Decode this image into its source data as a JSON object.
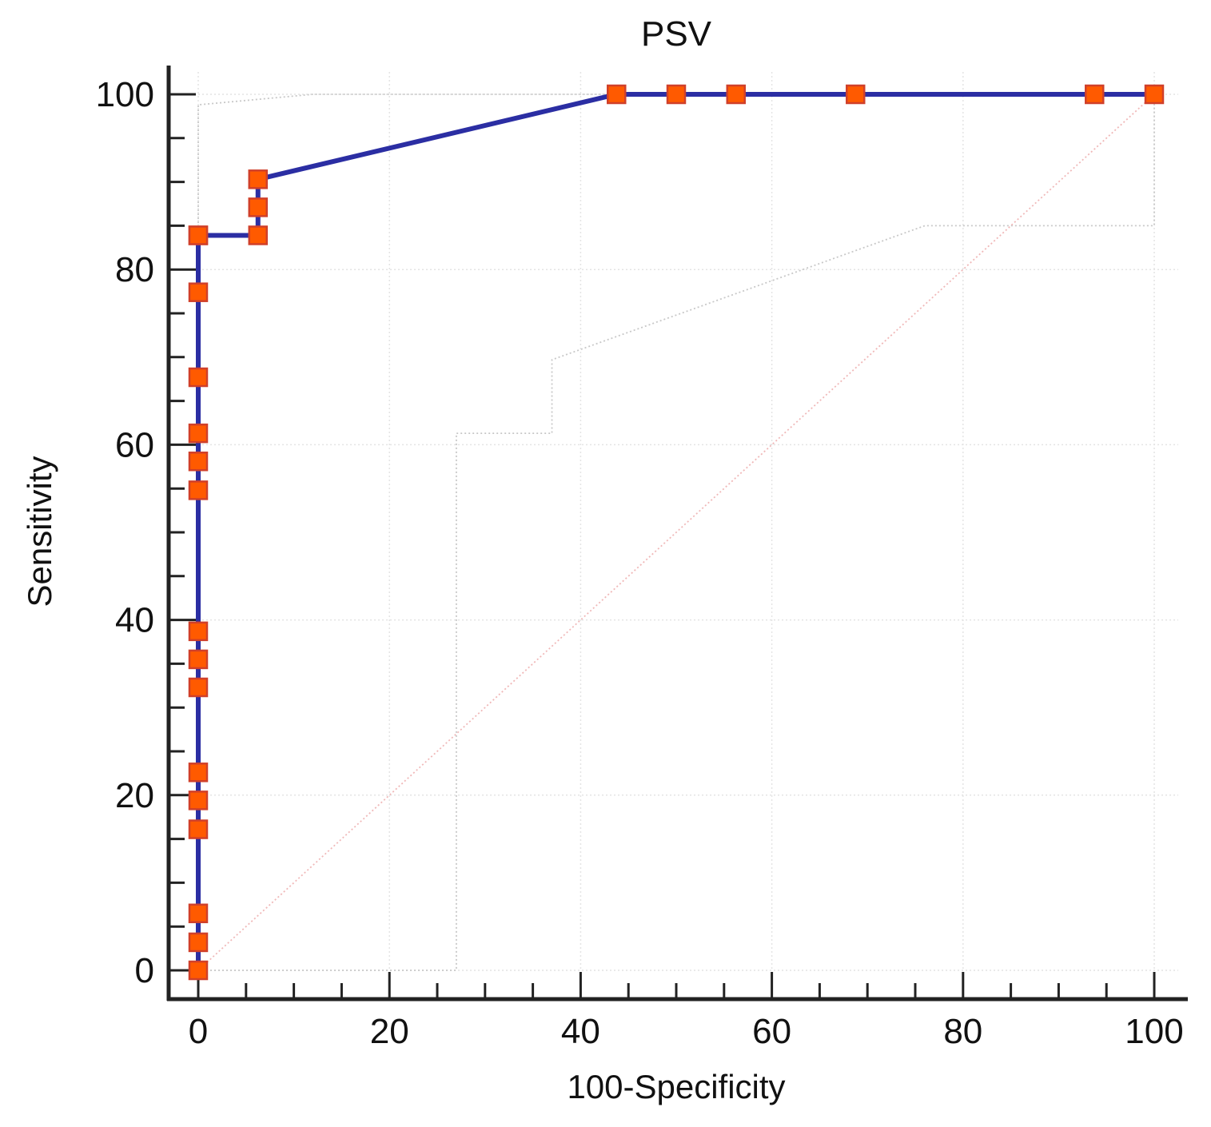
{
  "chart_data": {
    "type": "line",
    "title": "PSV",
    "xlabel": "100-Specificity",
    "ylabel": "Sensitivity",
    "xlim": [
      0,
      100
    ],
    "ylim": [
      0,
      100
    ],
    "x_ticks": [
      "0",
      "20",
      "40",
      "60",
      "80",
      "100"
    ],
    "y_ticks": [
      "0",
      "20",
      "40",
      "60",
      "80",
      "100"
    ],
    "grid": true,
    "series": [
      {
        "name": "ROC curve",
        "line_color": "#2b2ea3",
        "marker_fill": "#ff5a00",
        "marker_edge": "#d0402a",
        "x": [
          0,
          0,
          0,
          0,
          0,
          0,
          0,
          0,
          0,
          0,
          0,
          0,
          0,
          0,
          0,
          0,
          6.25,
          6.25,
          6.25,
          43.75,
          50,
          56.25,
          68.75,
          93.75,
          100
        ],
        "y": [
          0,
          3.2,
          6.5,
          16.1,
          19.4,
          22.6,
          32.3,
          35.5,
          38.7,
          54.8,
          58.1,
          61.3,
          67.7,
          77.4,
          83.9,
          83.9,
          83.9,
          87.1,
          90.3,
          100,
          100,
          100,
          100,
          100,
          100
        ]
      },
      {
        "name": "Confidence lower bound",
        "line_color": "#c8c8c8",
        "x": [
          0,
          27,
          27,
          37,
          37,
          76,
          100,
          100
        ],
        "y": [
          0,
          0,
          61.3,
          61.3,
          69.7,
          85,
          85,
          100
        ]
      },
      {
        "name": "Confidence upper bound",
        "line_color": "#c8c8c8",
        "x": [
          0,
          0,
          12,
          100
        ],
        "y": [
          0,
          98.8,
          100,
          100
        ]
      },
      {
        "name": "Reference line",
        "line_color": "#f0b8b8",
        "x": [
          0,
          100
        ],
        "y": [
          0,
          100
        ]
      }
    ]
  }
}
